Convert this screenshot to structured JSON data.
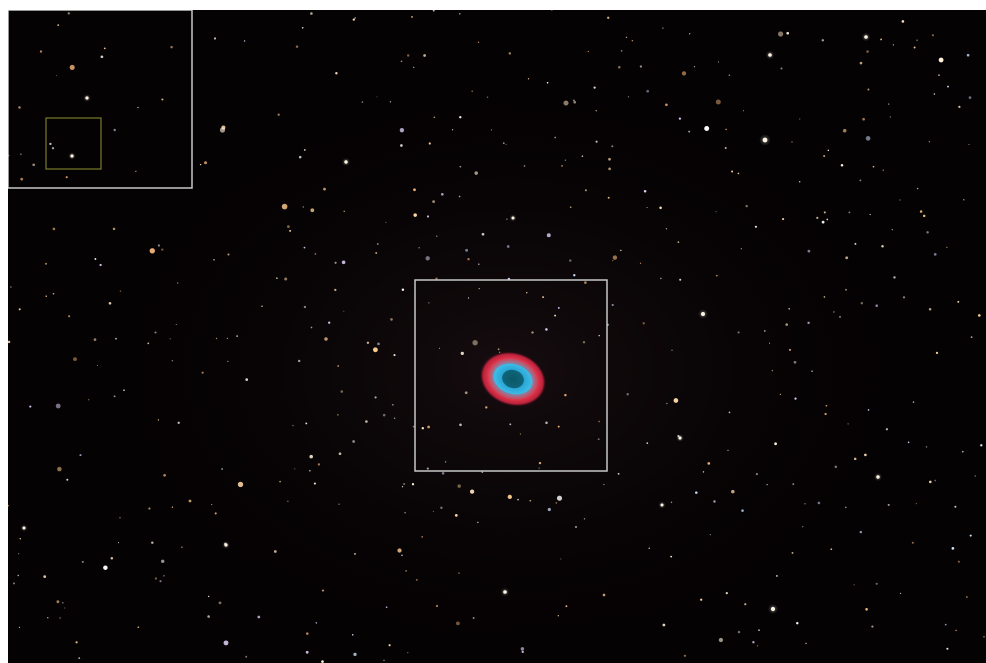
{
  "image": {
    "subject": "",
    "colors": {
      "sky": "#050203",
      "box_main": "#c8c8c8",
      "box_inset": "#c8c8c8",
      "box_inset_inner": "#7a7a2a",
      "nebula_ring": "#e0364a",
      "nebula_core": "#2aa8d8"
    }
  }
}
